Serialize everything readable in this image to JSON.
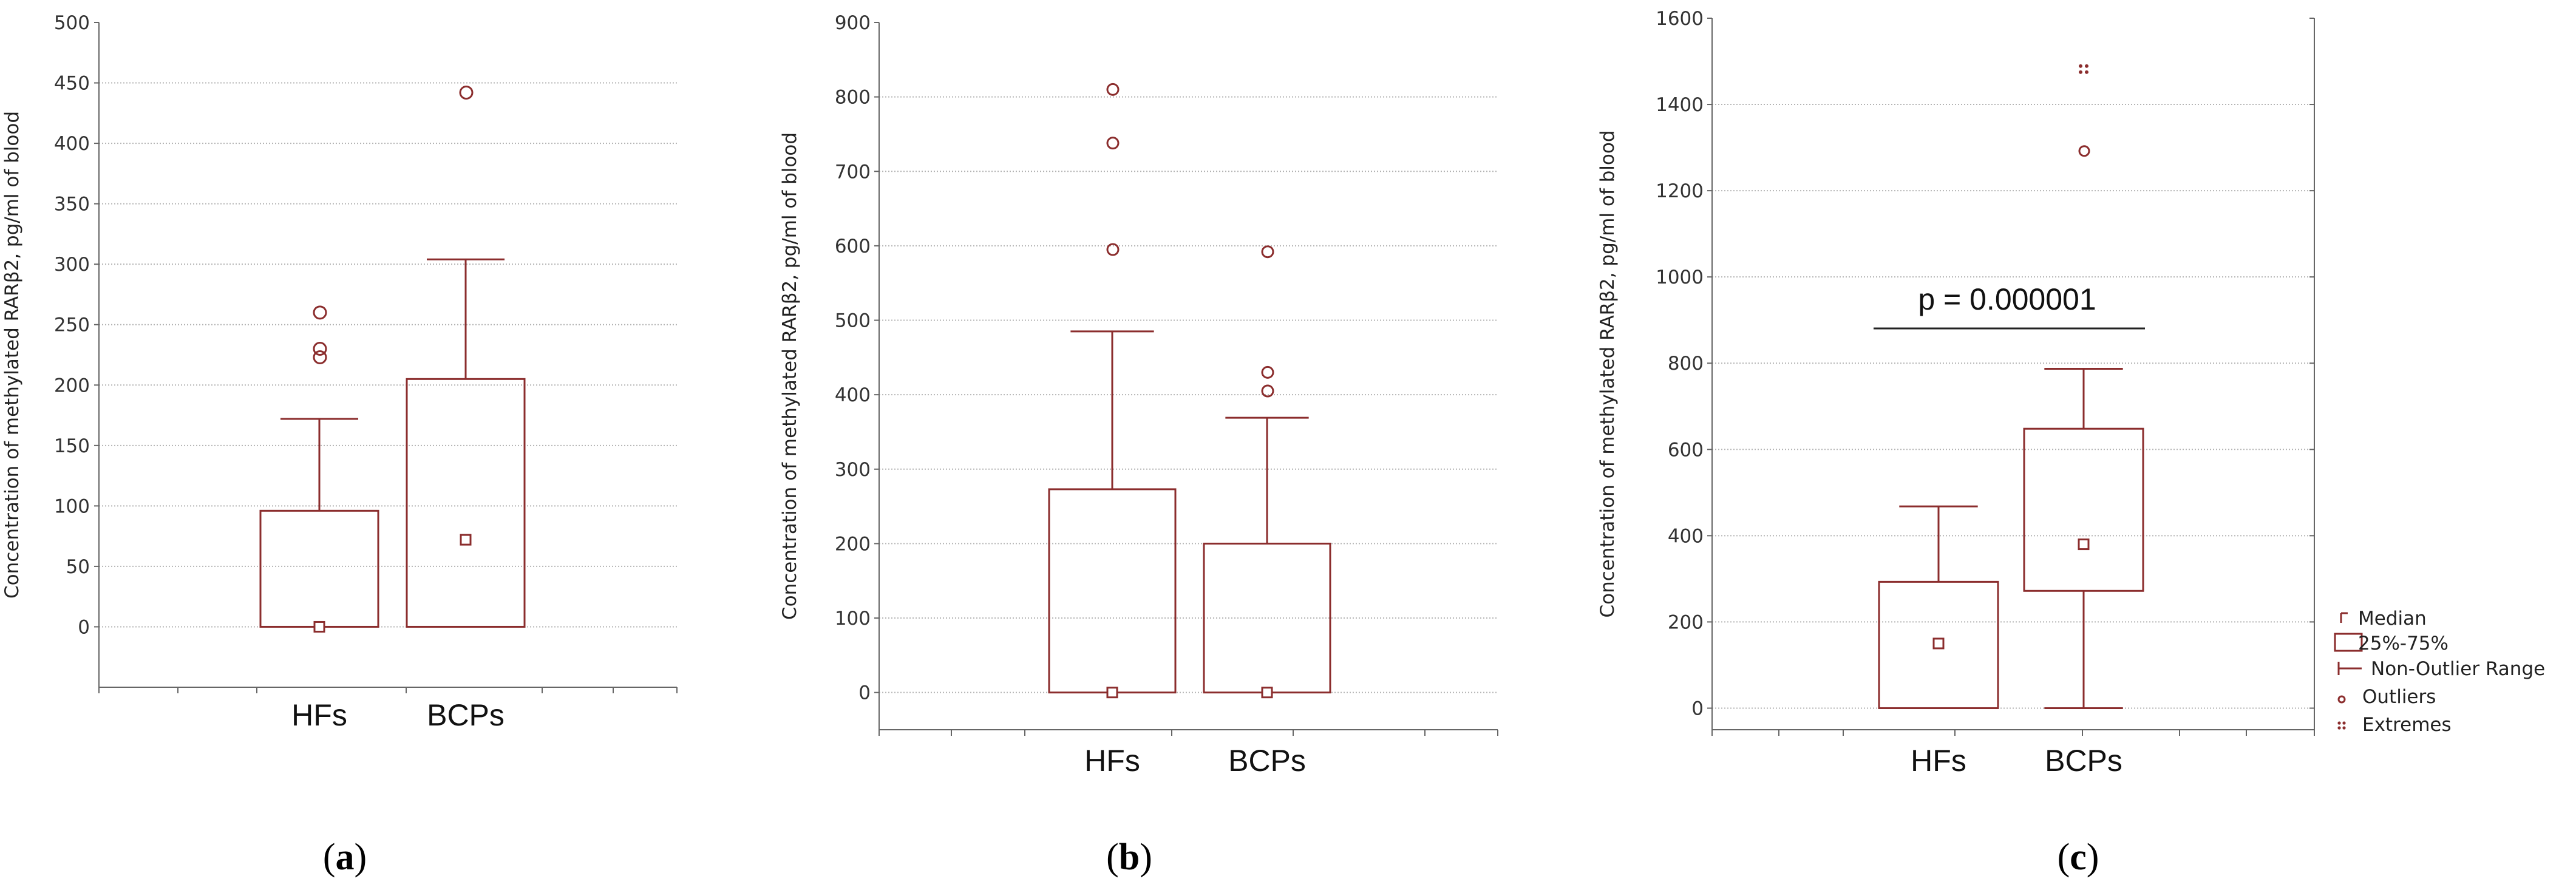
{
  "colors": {
    "box": "#8b2d2d",
    "axis": "#666666",
    "grid": "#b4b4b4",
    "text": "#111111"
  },
  "chart_data": [
    {
      "panel": "a",
      "type": "box",
      "ylabel": "Concentration of methylated RARβ2, pg/ml of blood",
      "ylim": [
        -50,
        500
      ],
      "yticks": [
        0,
        50,
        100,
        150,
        200,
        250,
        300,
        350,
        400,
        450,
        500
      ],
      "categories": [
        "HFs",
        "BCPs"
      ],
      "boxes": [
        {
          "name": "HFs",
          "whisker_low": 0,
          "q1": 0,
          "median": 0,
          "q3": 96,
          "whisker_high": 172,
          "outliers": [
            260,
            230,
            223
          ],
          "extremes": []
        },
        {
          "name": "BCPs",
          "whisker_low": 0,
          "q1": 0,
          "median": 72,
          "q3": 205,
          "whisker_high": 304,
          "outliers": [
            442
          ],
          "extremes": []
        }
      ]
    },
    {
      "panel": "b",
      "type": "box",
      "ylabel": "Concentration of methylated RARβ2, pg/ml of blood",
      "ylim": [
        -50,
        900
      ],
      "yticks": [
        0,
        100,
        200,
        300,
        400,
        500,
        600,
        700,
        800,
        900
      ],
      "categories": [
        "HFs",
        "BCPs"
      ],
      "boxes": [
        {
          "name": "HFs",
          "whisker_low": 0,
          "q1": 0,
          "median": 0,
          "q3": 273,
          "whisker_high": 485,
          "outliers": [
            810,
            738,
            595
          ],
          "extremes": []
        },
        {
          "name": "BCPs",
          "whisker_low": 0,
          "q1": 0,
          "median": 0,
          "q3": 200,
          "whisker_high": 369,
          "outliers": [
            592,
            430,
            405
          ],
          "extremes": []
        }
      ]
    },
    {
      "panel": "c",
      "type": "box",
      "ylabel": "Concentration of methylated RARβ2, pg/ml of blood",
      "ylim": [
        -50,
        1600
      ],
      "yticks": [
        0,
        200,
        400,
        600,
        800,
        1000,
        1200,
        1400,
        1600
      ],
      "categories": [
        "HFs",
        "BCPs"
      ],
      "annotation": "p = 0.000001",
      "boxes": [
        {
          "name": "HFs",
          "whisker_low": 0,
          "q1": 0,
          "median": 150,
          "q3": 293,
          "whisker_high": 468,
          "outliers": [],
          "extremes": []
        },
        {
          "name": "BCPs",
          "whisker_low": 0,
          "q1": 272,
          "median": 380,
          "q3": 648,
          "whisker_high": 787,
          "outliers": [
            1292
          ],
          "extremes": [
            1482
          ]
        }
      ],
      "legend": [
        "Median",
        "25%-75%",
        "Non-Outlier Range",
        "Outliers",
        "Extremes"
      ]
    }
  ],
  "panel_labels": [
    {
      "open": "(",
      "letter": "a",
      "close": ")"
    },
    {
      "open": "(",
      "letter": "b",
      "close": ")"
    },
    {
      "open": "(",
      "letter": "c",
      "close": ")"
    }
  ]
}
